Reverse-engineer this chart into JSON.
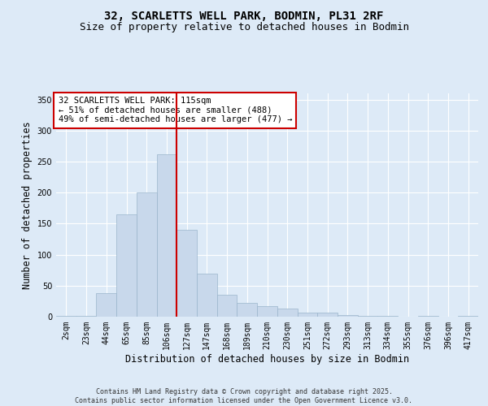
{
  "title_line1": "32, SCARLETTS WELL PARK, BODMIN, PL31 2RF",
  "title_line2": "Size of property relative to detached houses in Bodmin",
  "xlabel": "Distribution of detached houses by size in Bodmin",
  "ylabel": "Number of detached properties",
  "bar_labels": [
    "2sqm",
    "23sqm",
    "44sqm",
    "65sqm",
    "85sqm",
    "106sqm",
    "127sqm",
    "147sqm",
    "168sqm",
    "189sqm",
    "210sqm",
    "230sqm",
    "251sqm",
    "272sqm",
    "293sqm",
    "313sqm",
    "334sqm",
    "355sqm",
    "376sqm",
    "396sqm",
    "417sqm"
  ],
  "bar_values": [
    1,
    1,
    38,
    165,
    200,
    262,
    140,
    70,
    35,
    22,
    17,
    13,
    7,
    6,
    3,
    1,
    1,
    0,
    1,
    0,
    1
  ],
  "bar_color": "#c8d8eb",
  "bar_edge_color": "#9ab5cc",
  "vline_x": 5.5,
  "vline_color": "#cc0000",
  "ylim": [
    0,
    360
  ],
  "yticks": [
    0,
    50,
    100,
    150,
    200,
    250,
    300,
    350
  ],
  "annotation_text": "32 SCARLETTS WELL PARK: 115sqm\n← 51% of detached houses are smaller (488)\n49% of semi-detached houses are larger (477) →",
  "annotation_box_color": "#ffffff",
  "annotation_box_edge": "#cc0000",
  "footer_text": "Contains HM Land Registry data © Crown copyright and database right 2025.\nContains public sector information licensed under the Open Government Licence v3.0.",
  "bg_color": "#ddeaf7",
  "plot_bg_color": "#ddeaf7",
  "grid_color": "#ffffff",
  "title_fontsize": 10,
  "subtitle_fontsize": 9,
  "tick_fontsize": 7,
  "label_fontsize": 8.5,
  "footer_fontsize": 6,
  "annotation_fontsize": 7.5
}
